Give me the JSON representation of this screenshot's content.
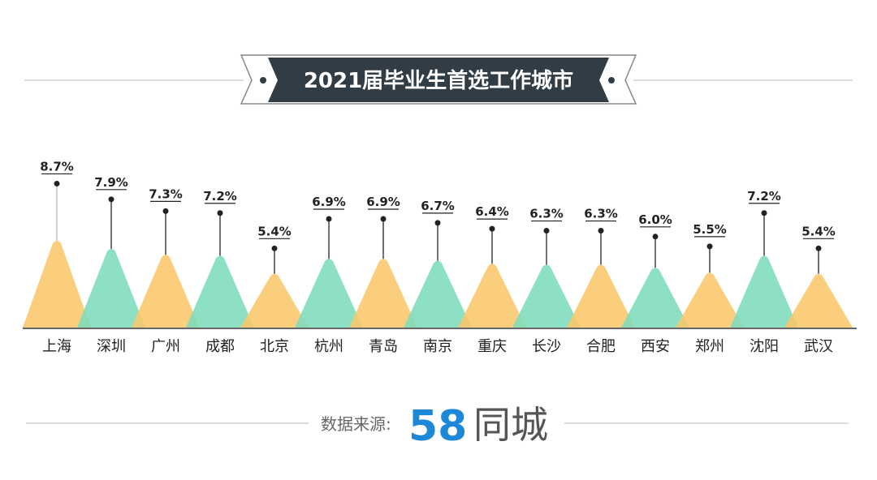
{
  "chart_data": {
    "type": "bar",
    "title": "2021届毕业生首选工作城市",
    "categories": [
      "上海",
      "深圳",
      "广州",
      "成都",
      "北京",
      "杭州",
      "青岛",
      "南京",
      "重庆",
      "长沙",
      "合肥",
      "西安",
      "郑州",
      "沈阳",
      "武汉"
    ],
    "values": [
      8.7,
      7.9,
      7.3,
      7.2,
      5.4,
      6.9,
      6.9,
      6.7,
      6.4,
      6.3,
      6.3,
      6.0,
      5.5,
      7.2,
      5.4
    ],
    "value_labels": [
      "8.7%",
      "7.9%",
      "7.3%",
      "7.2%",
      "5.4%",
      "6.9%",
      "6.9%",
      "6.7%",
      "6.4%",
      "6.3%",
      "6.3%",
      "6.0%",
      "5.5%",
      "7.2%",
      "5.4%"
    ],
    "unit": "%",
    "grid": false,
    "colors": [
      "#fbc76b",
      "#7ddcbc"
    ]
  },
  "source": {
    "label": "数据来源:",
    "logo_number": "58",
    "logo_text": "同城"
  },
  "colors": {
    "banner": "#323c44",
    "logo_5_top": "#e84040",
    "logo_5_bottom": "#1e88d8",
    "logo_8_top": "#5cb82e",
    "logo_8_bottom": "#f39020"
  }
}
